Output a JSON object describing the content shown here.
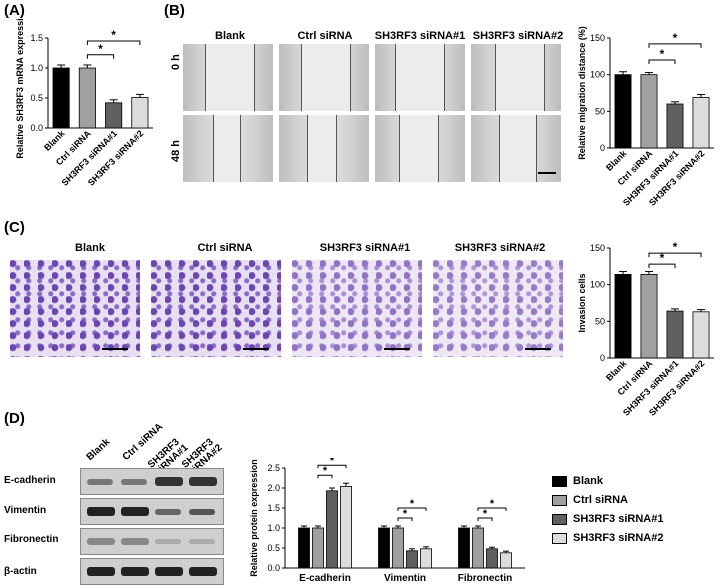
{
  "panels": {
    "A": "(A)",
    "B": "(B)",
    "C": "(C)",
    "D": "(D)"
  },
  "groups": [
    "Blank",
    "Ctrl siRNA",
    "SH3RF3 siRNA#1",
    "SH3RF3 siRNA#2"
  ],
  "colors": {
    "blank": "#000000",
    "ctrl": "#a0a0a0",
    "si1": "#606060",
    "si2": "#dcdcdc"
  },
  "panelB": {
    "column_titles": [
      "Blank",
      "Ctrl siRNA",
      "SH3RF3 siRNA#1",
      "SH3RF3 siRNA#2"
    ],
    "row_labels": [
      "0 h",
      "48 h"
    ]
  },
  "panelC": {
    "column_titles": [
      "Blank",
      "Ctrl siRNA",
      "SH3RF3 siRNA#1",
      "SH3RF3 siRNA#2"
    ]
  },
  "panelD": {
    "lane_labels": [
      "Blank",
      "Ctrl siRNA",
      "SH3RF3 siRNA#1",
      "SH3RF3 siRNA#2"
    ],
    "blots": [
      "E-cadherin",
      "Vimentin",
      "Fibronectin",
      "β-actin"
    ],
    "legend": [
      "Blank",
      "Ctrl siRNA",
      "SH3RF3 siRNA#1",
      "SH3RF3 siRNA#2"
    ]
  },
  "chart_data": [
    {
      "type": "bar",
      "panel": "A",
      "categories": [
        "Blank",
        "Ctrl siRNA",
        "SH3RF3 siRNA#1",
        "SH3RF3 siRNA#2"
      ],
      "values": [
        1.0,
        1.0,
        0.42,
        0.51
      ],
      "errors": [
        0.05,
        0.05,
        0.05,
        0.05
      ],
      "ylabel": "Relative SH3RF3 mRNA expression",
      "ylim": [
        0,
        1.5
      ],
      "yticks": [
        "0.0",
        "0.5",
        "1.0",
        "1.5"
      ],
      "significance": [
        "*",
        "*"
      ]
    },
    {
      "type": "bar",
      "panel": "B",
      "categories": [
        "Blank",
        "Ctrl siRNA",
        "SH3RF3 siRNA#1",
        "SH3RF3 siRNA#2"
      ],
      "values": [
        100,
        100,
        60,
        69
      ],
      "errors": [
        4,
        3,
        3,
        4
      ],
      "ylabel": "Relative migration distance (%)",
      "ylim": [
        0,
        150
      ],
      "yticks": [
        "0",
        "50",
        "100",
        "150"
      ],
      "significance": [
        "*",
        "*"
      ]
    },
    {
      "type": "bar",
      "panel": "C",
      "categories": [
        "Blank",
        "Ctrl siRNA",
        "SH3RF3 siRNA#1",
        "SH3RF3 siRNA#2"
      ],
      "values": [
        114,
        114,
        64,
        63
      ],
      "errors": [
        4,
        4,
        3,
        3
      ],
      "ylabel": "Invasion cells",
      "ylim": [
        0,
        150
      ],
      "yticks": [
        "0",
        "50",
        "100",
        "150"
      ],
      "significance": [
        "*",
        "*"
      ]
    },
    {
      "type": "bar",
      "panel": "D",
      "categories": [
        "E-cadherin",
        "Vimentin",
        "Fibronectin"
      ],
      "series": [
        {
          "name": "Blank",
          "values": [
            1.0,
            1.0,
            1.0
          ]
        },
        {
          "name": "Ctrl siRNA",
          "values": [
            1.0,
            1.0,
            1.0
          ]
        },
        {
          "name": "SH3RF3 siRNA#1",
          "values": [
            1.93,
            0.43,
            0.48
          ]
        },
        {
          "name": "SH3RF3 siRNA#2",
          "values": [
            2.04,
            0.48,
            0.38
          ]
        }
      ],
      "errors": [
        [
          0.05,
          0.05,
          0.05
        ],
        [
          0.05,
          0.05,
          0.05
        ],
        [
          0.07,
          0.05,
          0.04
        ],
        [
          0.08,
          0.05,
          0.04
        ]
      ],
      "ylabel": "Relative protein expression",
      "ylim": [
        0,
        2.5
      ],
      "yticks": [
        "0.0",
        "0.5",
        "1.0",
        "1.5",
        "2.0",
        "2.5"
      ],
      "significance": [
        "*",
        "*",
        "*",
        "*",
        "*",
        "*"
      ]
    }
  ]
}
